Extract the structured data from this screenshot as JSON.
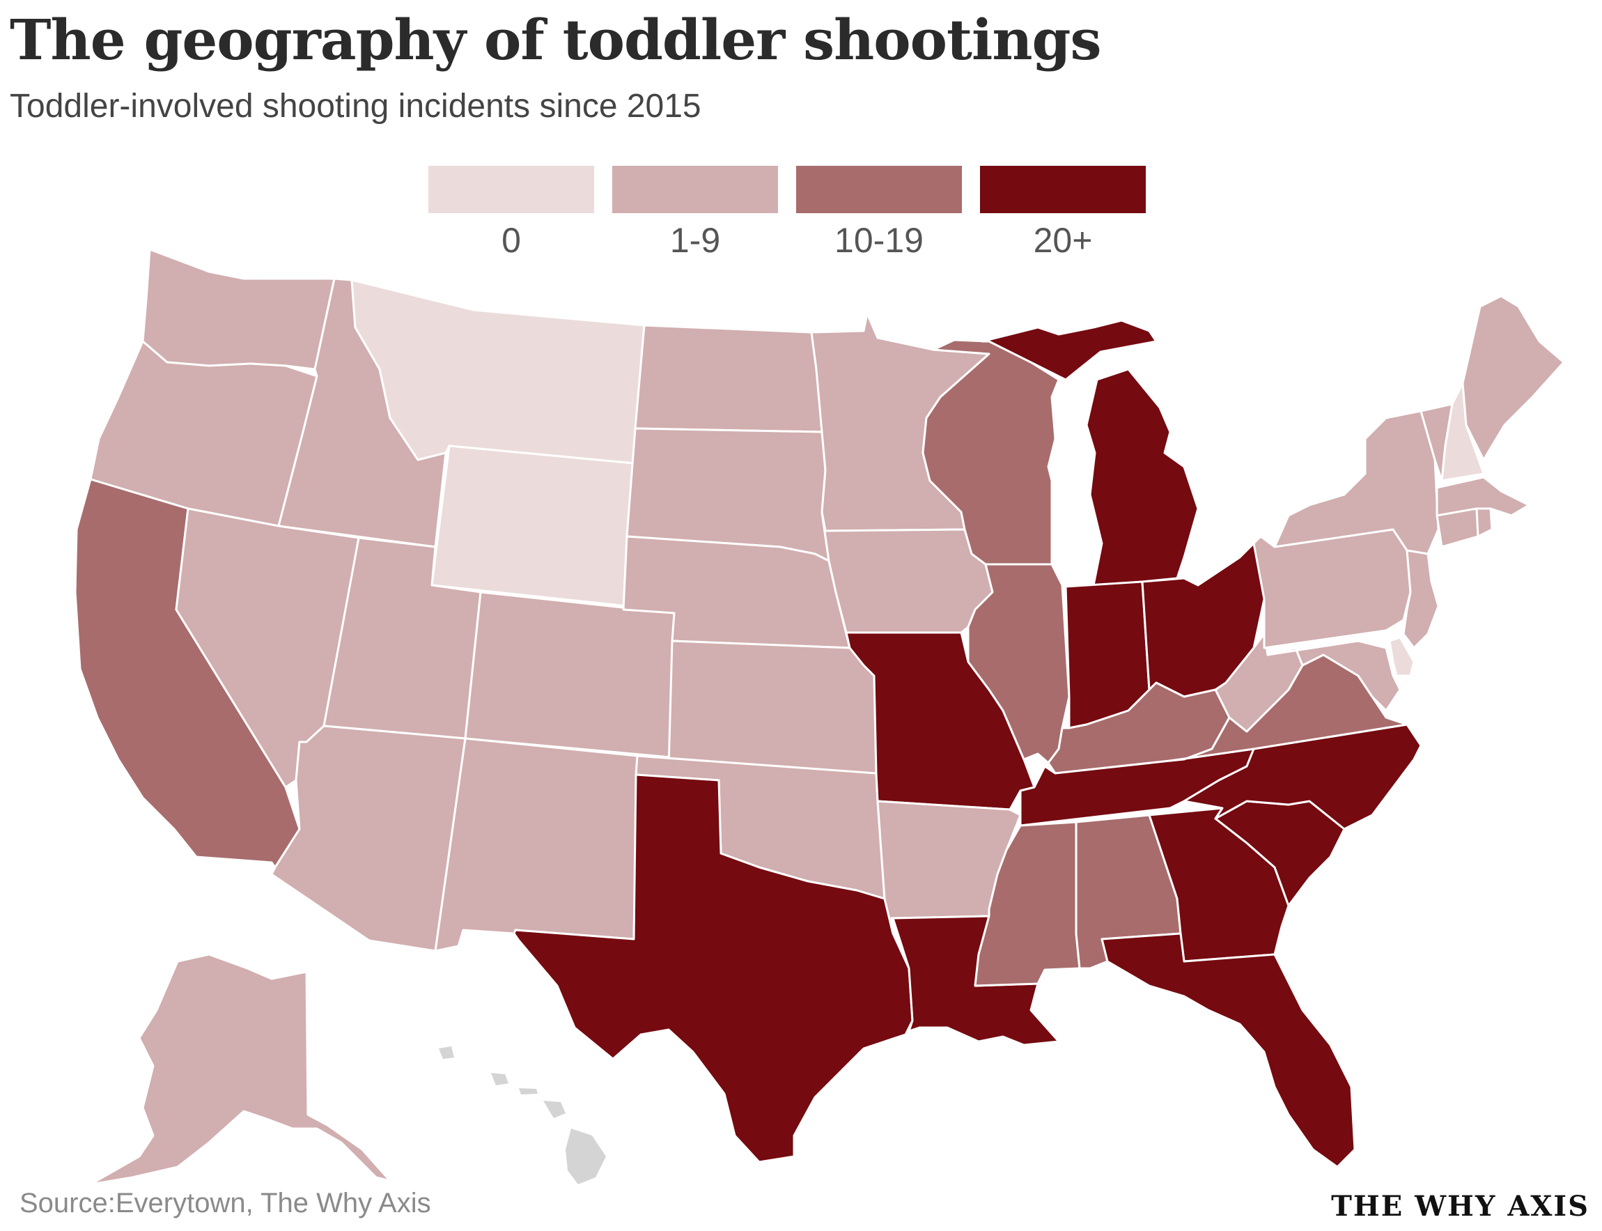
{
  "header": {
    "title": "The geography of toddler shootings",
    "subtitle": "Toddler-involved shooting incidents since 2015"
  },
  "legend": {
    "items": [
      {
        "label": "0",
        "color": "#ebdcdb"
      },
      {
        "label": "1-9",
        "color": "#d1aeaf"
      },
      {
        "label": "10-19",
        "color": "#a86c6c"
      },
      {
        "label": "20+",
        "color": "#750a10"
      }
    ]
  },
  "colors": {
    "c0": "#ebdcdb",
    "c1": "#d1aeaf",
    "c2": "#a86c6c",
    "c3": "#750a10",
    "no_data": "#d4d4d4"
  },
  "chart_data": {
    "type": "choropleth",
    "region": "United States",
    "categories": [
      "0",
      "1-9",
      "10-19",
      "20+"
    ],
    "states": {
      "Montana": "0",
      "Wyoming": "0",
      "New Hampshire": "0",
      "Delaware": "0",
      "Washington": "1-9",
      "Oregon": "1-9",
      "Idaho": "1-9",
      "Nevada": "1-9",
      "Utah": "1-9",
      "Arizona": "1-9",
      "Colorado": "1-9",
      "New Mexico": "1-9",
      "North Dakota": "1-9",
      "South Dakota": "1-9",
      "Nebraska": "1-9",
      "Kansas": "1-9",
      "Oklahoma": "1-9",
      "Minnesota": "1-9",
      "Iowa": "1-9",
      "Arkansas": "1-9",
      "West Virginia": "1-9",
      "Pennsylvania": "1-9",
      "New York": "1-9",
      "Vermont": "1-9",
      "Maine": "1-9",
      "Massachusetts": "1-9",
      "Connecticut": "1-9",
      "Rhode Island": "1-9",
      "New Jersey": "1-9",
      "Maryland": "1-9",
      "Alaska": "1-9",
      "California": "10-19",
      "Wisconsin": "10-19",
      "Illinois": "10-19",
      "Kentucky": "10-19",
      "Virginia": "10-19",
      "Mississippi": "10-19",
      "Alabama": "10-19",
      "Texas": "20+",
      "Louisiana": "20+",
      "Missouri": "20+",
      "Michigan": "20+",
      "Indiana": "20+",
      "Ohio": "20+",
      "Tennessee": "20+",
      "North Carolina": "20+",
      "South Carolina": "20+",
      "Georgia": "20+",
      "Florida": "20+"
    }
  },
  "footer": {
    "source": "Source:Everytown, The Why Axis",
    "brand": "THE WHY AXIS"
  }
}
